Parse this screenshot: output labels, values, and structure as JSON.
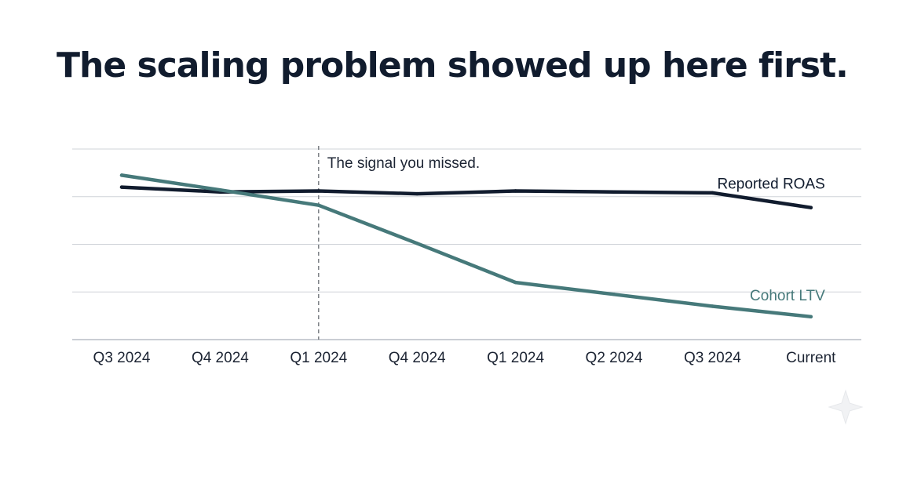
{
  "title": "The scaling problem showed up here first.",
  "colors": {
    "title": "#111c2e",
    "reported_roas": "#111c2e",
    "cohort_ltv": "#46797a",
    "grid": "#cfd3d8",
    "annotation_line": "#6b6f75"
  },
  "chart_data": {
    "type": "line",
    "title": "",
    "xlabel": "",
    "ylabel": "",
    "categories": [
      "Q3 2024",
      "Q4 2024",
      "Q1 2024",
      "Q4 2024",
      "Q1 2024",
      "Q2 2024",
      "Q3 2024",
      "Current"
    ],
    "ylim": [
      0,
      4
    ],
    "y_tick_labels_shown": false,
    "grid": true,
    "legend": "inline labels at line ends",
    "series": [
      {
        "name": "Reported ROAS",
        "values": [
          3.2,
          3.1,
          3.12,
          3.06,
          3.12,
          3.1,
          3.08,
          2.77
        ],
        "color": "#111c2e"
      },
      {
        "name": "Cohort LTV",
        "values": [
          3.45,
          3.14,
          2.82,
          2.02,
          1.2,
          0.95,
          0.7,
          0.48
        ],
        "color": "#46797a"
      }
    ],
    "annotations": [
      {
        "text": "The signal you missed.",
        "category_index": 2,
        "style": "dashed vertical line"
      }
    ]
  }
}
